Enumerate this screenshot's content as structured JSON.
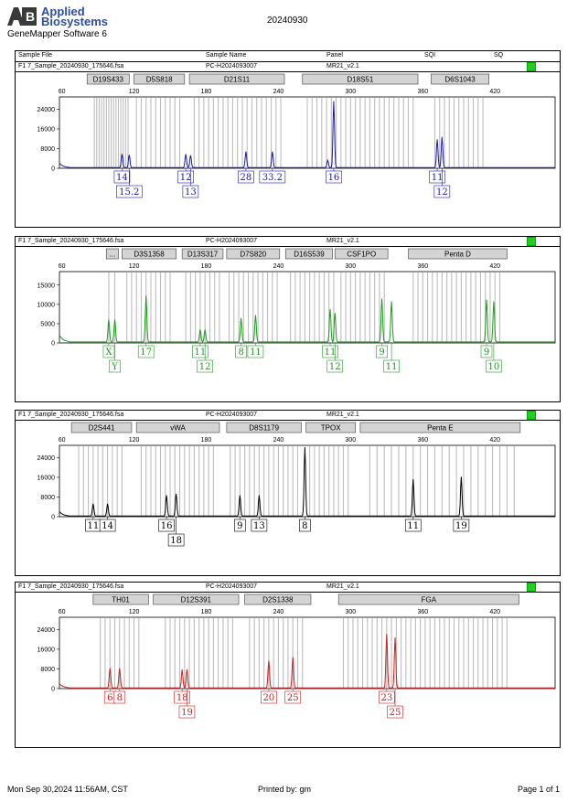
{
  "header": {
    "brand_line1": "Applied",
    "brand_line2": "Biosystems",
    "software": "GeneMapper Software 6",
    "title": "20240930"
  },
  "columns": {
    "sample_file": "Sample File",
    "sample_name": "Sample Name",
    "panel": "Panel",
    "sqi": "SQI",
    "sq": "SQ"
  },
  "sample": {
    "file": "F1  7_Sample_20240930_175646.fsa",
    "name": "PC-H2024093007",
    "panel": "MR21_v2.1"
  },
  "footer": {
    "datetime": "Mon Sep 30,2024 11:56AM, CST",
    "printed_by": "Printed by: gm",
    "page": "Page 1 of 1"
  },
  "chart_data": [
    {
      "type": "line",
      "dye": "blue",
      "color": "#1a1aa8",
      "x_ticks": [
        60,
        120,
        180,
        240,
        300,
        360,
        420
      ],
      "y_ticks": [
        0,
        8000,
        16000,
        24000
      ],
      "ylim": [
        0,
        29000
      ],
      "markers": [
        {
          "label": "D19S433",
          "from": 81,
          "to": 116
        },
        {
          "label": "D5S818",
          "from": 120,
          "to": 162
        },
        {
          "label": "D21S11",
          "from": 166,
          "to": 245
        },
        {
          "label": "D18S51",
          "from": 260,
          "to": 356
        },
        {
          "label": "D6S1043",
          "from": 367,
          "to": 415
        }
      ],
      "peaks": [
        {
          "x": 110,
          "h": 5500
        },
        {
          "x": 116,
          "h": 5200
        },
        {
          "x": 163,
          "h": 5500
        },
        {
          "x": 167,
          "h": 5000
        },
        {
          "x": 213,
          "h": 6500
        },
        {
          "x": 235,
          "h": 6500
        },
        {
          "x": 281,
          "h": 3000
        },
        {
          "x": 286,
          "h": 27000
        },
        {
          "x": 372,
          "h": 11500
        },
        {
          "x": 376,
          "h": 12500
        }
      ],
      "labels": [
        {
          "x": 110,
          "row": 1,
          "text": "14"
        },
        {
          "x": 116,
          "row": 2,
          "text": "15.2"
        },
        {
          "x": 163,
          "row": 1,
          "text": "12"
        },
        {
          "x": 167,
          "row": 2,
          "text": "13"
        },
        {
          "x": 213,
          "row": 1,
          "text": "28"
        },
        {
          "x": 235,
          "row": 1,
          "text": "33.2"
        },
        {
          "x": 286,
          "row": 1,
          "text": "16"
        },
        {
          "x": 372,
          "row": 1,
          "text": "11"
        },
        {
          "x": 376,
          "row": 2,
          "text": "12"
        }
      ],
      "bins": [
        87,
        89,
        91,
        93,
        95,
        97,
        99,
        101,
        103,
        105,
        107,
        109,
        111,
        113,
        115,
        122,
        126,
        130,
        134,
        138,
        142,
        146,
        150,
        154,
        158,
        170,
        174,
        178,
        182,
        186,
        190,
        194,
        198,
        202,
        206,
        210,
        214,
        218,
        222,
        226,
        230,
        234,
        238,
        242,
        264,
        268,
        272,
        276,
        280,
        284,
        288,
        292,
        296,
        300,
        304,
        308,
        312,
        316,
        320,
        324,
        328,
        332,
        336,
        340,
        344,
        348,
        352,
        370,
        374,
        378,
        382,
        386,
        390,
        394,
        398,
        402,
        406,
        410
      ]
    },
    {
      "type": "line",
      "dye": "green",
      "color": "#1e9a1e",
      "x_ticks": [
        60,
        120,
        180,
        240,
        300,
        360,
        420
      ],
      "y_ticks": [
        0,
        5000,
        10000,
        15000
      ],
      "ylim": [
        0,
        18500
      ],
      "markers": [
        {
          "label": "...",
          "from": 97,
          "to": 107
        },
        {
          "label": "D3S1358",
          "from": 110,
          "to": 155
        },
        {
          "label": "D13S317",
          "from": 160,
          "to": 194
        },
        {
          "label": "D7S820",
          "from": 197,
          "to": 241
        },
        {
          "label": "D16S539",
          "from": 246,
          "to": 285
        },
        {
          "label": "CSF1PO",
          "from": 287,
          "to": 331
        },
        {
          "label": "Penta D",
          "from": 348,
          "to": 430
        }
      ],
      "peaks": [
        {
          "x": 99,
          "h": 5800
        },
        {
          "x": 104,
          "h": 5800
        },
        {
          "x": 130,
          "h": 12000
        },
        {
          "x": 175,
          "h": 3200
        },
        {
          "x": 179,
          "h": 3200
        },
        {
          "x": 209,
          "h": 6200
        },
        {
          "x": 221,
          "h": 7000
        },
        {
          "x": 283,
          "h": 8500
        },
        {
          "x": 287,
          "h": 7500
        },
        {
          "x": 326,
          "h": 11200
        },
        {
          "x": 334,
          "h": 10500
        },
        {
          "x": 413,
          "h": 11000
        },
        {
          "x": 419,
          "h": 10500
        }
      ],
      "labels": [
        {
          "x": 99,
          "row": 1,
          "text": "X"
        },
        {
          "x": 104,
          "row": 2,
          "text": "Y"
        },
        {
          "x": 130,
          "row": 1,
          "text": "17"
        },
        {
          "x": 175,
          "row": 1,
          "text": "11"
        },
        {
          "x": 179,
          "row": 2,
          "text": "12"
        },
        {
          "x": 209,
          "row": 1,
          "text": "8"
        },
        {
          "x": 221,
          "row": 1,
          "text": "11"
        },
        {
          "x": 283,
          "row": 1,
          "text": "11"
        },
        {
          "x": 287,
          "row": 2,
          "text": "12"
        },
        {
          "x": 326,
          "row": 1,
          "text": "9"
        },
        {
          "x": 334,
          "row": 2,
          "text": "11"
        },
        {
          "x": 413,
          "row": 1,
          "text": "9"
        },
        {
          "x": 419,
          "row": 2,
          "text": "10"
        }
      ],
      "bins": [
        99,
        104,
        114,
        118,
        122,
        126,
        130,
        134,
        138,
        142,
        146,
        150,
        163,
        167,
        171,
        175,
        179,
        183,
        187,
        191,
        199,
        203,
        207,
        211,
        215,
        219,
        223,
        227,
        231,
        235,
        239,
        250,
        254,
        258,
        262,
        266,
        270,
        274,
        278,
        282,
        286,
        292,
        296,
        300,
        304,
        308,
        312,
        316,
        320,
        324,
        328,
        352,
        356,
        360,
        364,
        368,
        372,
        376,
        380,
        384,
        388,
        392,
        396,
        400,
        404,
        408,
        412,
        416,
        420,
        424
      ]
    },
    {
      "type": "line",
      "dye": "black",
      "color": "#000000",
      "x_ticks": [
        60,
        120,
        180,
        240,
        300,
        360,
        420
      ],
      "y_ticks": [
        0,
        8000,
        16000,
        24000
      ],
      "ylim": [
        0,
        29000
      ],
      "markers": [
        {
          "label": "D2S441",
          "from": 68,
          "to": 118
        },
        {
          "label": "vWA",
          "from": 122,
          "to": 191
        },
        {
          "label": "D8S1179",
          "from": 197,
          "to": 259
        },
        {
          "label": "TPOX",
          "from": 263,
          "to": 304
        },
        {
          "label": "Penta E",
          "from": 308,
          "to": 441
        }
      ],
      "peaks": [
        {
          "x": 86,
          "h": 5000
        },
        {
          "x": 98,
          "h": 5000
        },
        {
          "x": 147,
          "h": 8500
        },
        {
          "x": 155,
          "h": 9000
        },
        {
          "x": 208,
          "h": 8500
        },
        {
          "x": 224,
          "h": 8500
        },
        {
          "x": 262,
          "h": 28000
        },
        {
          "x": 352,
          "h": 15000
        },
        {
          "x": 392,
          "h": 16000
        }
      ],
      "labels": [
        {
          "x": 86,
          "row": 1,
          "text": "11"
        },
        {
          "x": 98,
          "row": 1,
          "text": "14"
        },
        {
          "x": 147,
          "row": 1,
          "text": "16"
        },
        {
          "x": 155,
          "row": 2,
          "text": "18"
        },
        {
          "x": 208,
          "row": 1,
          "text": "9"
        },
        {
          "x": 224,
          "row": 1,
          "text": "13"
        },
        {
          "x": 262,
          "row": 1,
          "text": "8"
        },
        {
          "x": 352,
          "row": 1,
          "text": "11"
        },
        {
          "x": 392,
          "row": 1,
          "text": "19"
        }
      ],
      "bins": [
        74,
        78,
        82,
        86,
        90,
        94,
        98,
        102,
        106,
        110,
        126,
        130,
        134,
        138,
        142,
        146,
        150,
        154,
        158,
        162,
        166,
        170,
        174,
        178,
        182,
        186,
        200,
        204,
        208,
        212,
        216,
        220,
        224,
        228,
        232,
        236,
        240,
        244,
        248,
        252,
        256,
        266,
        270,
        274,
        278,
        282,
        286,
        290,
        294,
        298,
        316,
        322,
        328,
        334,
        340,
        346,
        352,
        358,
        364,
        370,
        376,
        382,
        388,
        394,
        400,
        406,
        412,
        418,
        424,
        430,
        436
      ]
    },
    {
      "type": "line",
      "dye": "red",
      "color": "#c81e1e",
      "x_ticks": [
        60,
        120,
        180,
        240,
        300,
        360,
        420
      ],
      "y_ticks": [
        0,
        8000,
        16000,
        24000
      ],
      "ylim": [
        0,
        29000
      ],
      "markers": [
        {
          "label": "TH01",
          "from": 86,
          "to": 132
        },
        {
          "label": "D12S391",
          "from": 136,
          "to": 207
        },
        {
          "label": "D2S1338",
          "from": 212,
          "to": 267
        },
        {
          "label": "FGA",
          "from": 290,
          "to": 440
        }
      ],
      "peaks": [
        {
          "x": 100,
          "h": 8000
        },
        {
          "x": 108,
          "h": 8000
        },
        {
          "x": 160,
          "h": 7500
        },
        {
          "x": 164,
          "h": 7500
        },
        {
          "x": 232,
          "h": 11000
        },
        {
          "x": 252,
          "h": 12500
        },
        {
          "x": 330,
          "h": 22000
        },
        {
          "x": 337,
          "h": 20500
        }
      ],
      "labels": [
        {
          "x": 100,
          "row": 1,
          "text": "6"
        },
        {
          "x": 108,
          "row": 1,
          "text": "8"
        },
        {
          "x": 160,
          "row": 1,
          "text": "18"
        },
        {
          "x": 164,
          "row": 2,
          "text": "19"
        },
        {
          "x": 232,
          "row": 1,
          "text": "20"
        },
        {
          "x": 252,
          "row": 1,
          "text": "25"
        },
        {
          "x": 330,
          "row": 1,
          "text": "23"
        },
        {
          "x": 337,
          "row": 2,
          "text": "25"
        }
      ],
      "bins": [
        92,
        96,
        100,
        104,
        108,
        112,
        116,
        120,
        124,
        146,
        150,
        154,
        158,
        162,
        166,
        170,
        174,
        178,
        182,
        186,
        190,
        194,
        198,
        202,
        216,
        220,
        224,
        228,
        232,
        236,
        240,
        244,
        248,
        252,
        256,
        260,
        294,
        298,
        302,
        306,
        310,
        314,
        318,
        322,
        326,
        330,
        334,
        338,
        342,
        346,
        350,
        354,
        358,
        362,
        366,
        370,
        374,
        378,
        382,
        386,
        390,
        394,
        398,
        402,
        406,
        410,
        414,
        418,
        422,
        426,
        430
      ]
    }
  ]
}
